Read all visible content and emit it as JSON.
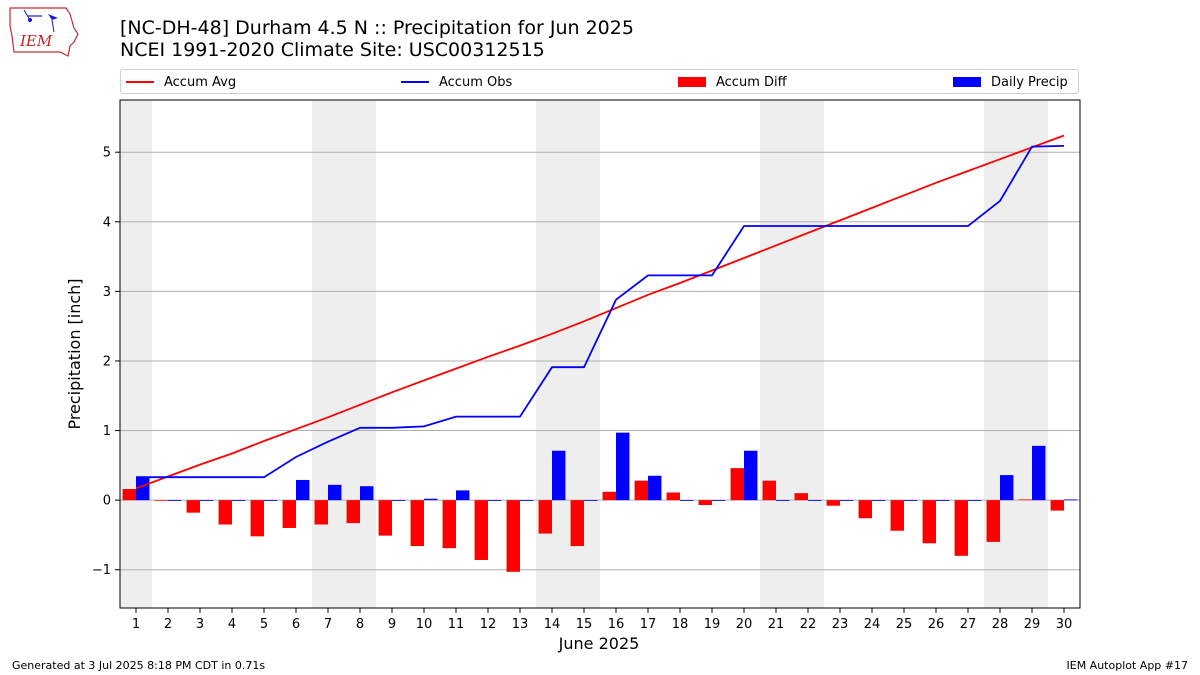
{
  "header": {
    "title_line1": "[NC-DH-48] Durham 4.5 N :: Precipitation for Jun 2025",
    "title_line2": "NCEI 1991-2020 Climate Site: USC00312515",
    "logo_text": "IEM"
  },
  "footer": {
    "generated": "Generated at 3 Jul 2025 8:18 PM CDT in 0.71s",
    "app": "IEM Autoplot App #17"
  },
  "colors": {
    "avg": "#ff0000",
    "obs": "#0000ff",
    "diff": "#ff0000",
    "daily": "#0000ff",
    "weekend_shade": "#eeeeee",
    "grid": "#b0b0b0"
  },
  "chart_data": {
    "type": "bar",
    "xlabel": "June 2025",
    "ylabel": "Precipitation [inch]",
    "ylim": [
      -1.55,
      5.75
    ],
    "yticks": [
      -1,
      0,
      1,
      2,
      3,
      4,
      5
    ],
    "ytick_labels": [
      "−1",
      "0",
      "1",
      "2",
      "3",
      "4",
      "5"
    ],
    "grid": "horizontal",
    "legend_placement": "top",
    "legend": [
      "Accum Avg",
      "Accum Obs",
      "Accum Diff",
      "Daily Precip"
    ],
    "days": [
      1,
      2,
      3,
      4,
      5,
      6,
      7,
      8,
      9,
      10,
      11,
      12,
      13,
      14,
      15,
      16,
      17,
      18,
      19,
      20,
      21,
      22,
      23,
      24,
      25,
      26,
      27,
      28,
      29,
      30
    ],
    "weekend_days": [
      1,
      7,
      8,
      14,
      15,
      21,
      22,
      28,
      29
    ],
    "series": [
      {
        "name": "Accum Avg",
        "kind": "line",
        "values": [
          0.17,
          0.34,
          0.51,
          0.67,
          0.85,
          1.02,
          1.19,
          1.37,
          1.55,
          1.72,
          1.89,
          2.06,
          2.22,
          2.39,
          2.57,
          2.76,
          2.95,
          3.12,
          3.3,
          3.48,
          3.66,
          3.84,
          4.02,
          4.2,
          4.38,
          4.56,
          4.73,
          4.9,
          5.07,
          5.24
        ]
      },
      {
        "name": "Accum Obs",
        "kind": "line",
        "values": [
          0.33,
          0.33,
          0.33,
          0.33,
          0.33,
          0.62,
          0.84,
          1.04,
          1.04,
          1.06,
          1.2,
          1.2,
          1.2,
          1.91,
          1.91,
          2.88,
          3.23,
          3.23,
          3.23,
          3.94,
          3.94,
          3.94,
          3.94,
          3.94,
          3.94,
          3.94,
          3.94,
          4.3,
          5.08,
          5.09
        ]
      },
      {
        "name": "Accum Diff",
        "kind": "bar",
        "values": [
          0.16,
          -0.01,
          -0.18,
          -0.35,
          -0.52,
          -0.4,
          -0.35,
          -0.33,
          -0.51,
          -0.66,
          -0.69,
          -0.86,
          -1.03,
          -0.48,
          -0.66,
          0.12,
          0.28,
          0.11,
          -0.07,
          0.46,
          0.28,
          0.1,
          -0.08,
          -0.26,
          -0.44,
          -0.62,
          -0.8,
          -0.6,
          0.01,
          -0.15
        ]
      },
      {
        "name": "Daily Precip",
        "kind": "bar",
        "values": [
          0.33,
          0.0,
          0.0,
          0.0,
          0.0,
          0.29,
          0.22,
          0.2,
          0.0,
          0.02,
          0.14,
          0.0,
          0.0,
          0.71,
          0.0,
          0.97,
          0.35,
          0.0,
          0.0,
          0.71,
          0.0,
          0.0,
          0.0,
          0.0,
          0.0,
          0.0,
          0.0,
          0.36,
          0.78,
          0.01
        ]
      }
    ]
  }
}
